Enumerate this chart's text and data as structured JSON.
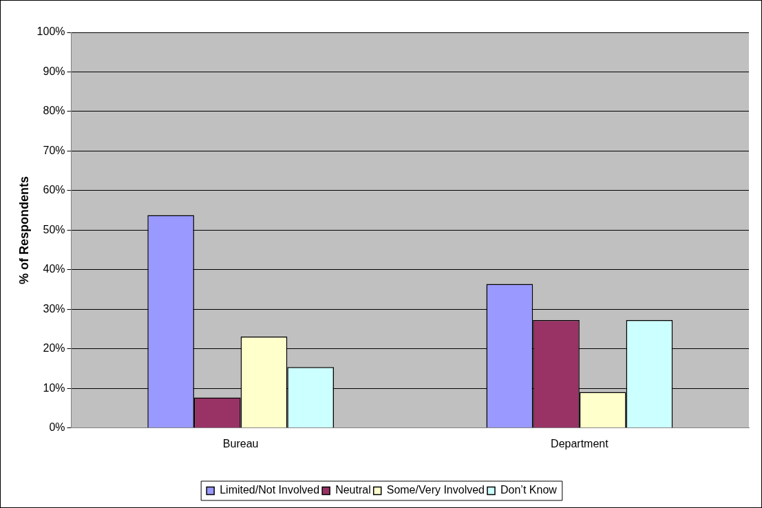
{
  "chart_data": {
    "type": "bar",
    "ylabel": "% of Respondents",
    "categories": [
      "Bureau",
      "Department"
    ],
    "series": [
      {
        "name": "Limited/Not Involved",
        "color": "#9999ff",
        "values": [
          53.8,
          36.4
        ]
      },
      {
        "name": "Neutral",
        "color": "#993366",
        "values": [
          7.7,
          27.3
        ]
      },
      {
        "name": "Some/Very Involved",
        "color": "#ffffcc",
        "values": [
          23.1,
          9.1
        ]
      },
      {
        "name": "Don’t Know",
        "color": "#ccffff",
        "values": [
          15.4,
          27.3
        ]
      }
    ],
    "ylim": [
      0,
      100
    ],
    "yticks": [
      {
        "value": 0,
        "label": "0%"
      },
      {
        "value": 10,
        "label": "10%"
      },
      {
        "value": 20,
        "label": "20%"
      },
      {
        "value": 30,
        "label": "30%"
      },
      {
        "value": 40,
        "label": "40%"
      },
      {
        "value": 50,
        "label": "50%"
      },
      {
        "value": 60,
        "label": "60%"
      },
      {
        "value": 70,
        "label": "70%"
      },
      {
        "value": 80,
        "label": "80%"
      },
      {
        "value": 90,
        "label": "90%"
      },
      {
        "value": 100,
        "label": "100%"
      }
    ],
    "grid": "y",
    "legend": "bottom"
  }
}
